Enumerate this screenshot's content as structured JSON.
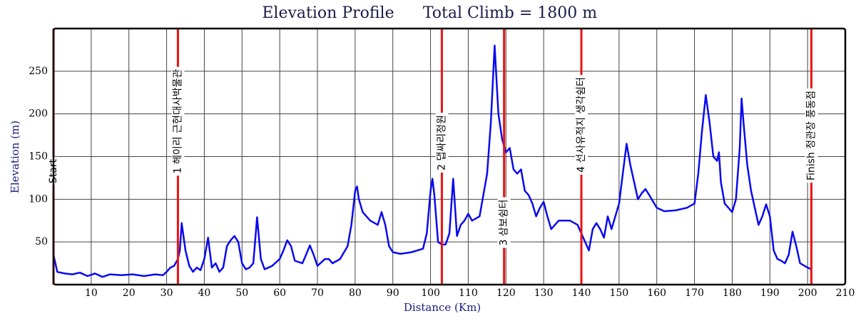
{
  "chart_data": {
    "type": "line",
    "title": "Elevation Profile",
    "total_climb": "Total Climb = 1800 m",
    "x_label": "Distance (Km)",
    "y_label": "Elevation (m)",
    "color": "#0a0aee",
    "grid": true,
    "marker_color": "#ee1111",
    "xlim": [
      0,
      210
    ],
    "xticks": [
      10,
      20,
      30,
      40,
      50,
      60,
      70,
      80,
      90,
      100,
      110,
      120,
      130,
      140,
      150,
      160,
      170,
      180,
      190,
      200,
      210
    ],
    "ylim": [
      0,
      300
    ],
    "yticks": [
      50,
      100,
      150,
      200,
      250
    ],
    "markers": [
      {
        "x": 0,
        "label": "Start"
      },
      {
        "x": 33,
        "label": "1 헤이리 근현대사박물관"
      },
      {
        "x": 103,
        "label": "2 댑싸리정원"
      },
      {
        "x": 119.5,
        "label": "3 삼보쉼터"
      },
      {
        "x": 140,
        "label": "4 선사유적지 생각쉼터"
      },
      {
        "x": 201,
        "label": "Finish 정관장 풍동점"
      }
    ],
    "x": [
      0,
      1,
      3,
      5,
      7,
      9,
      11,
      13,
      15,
      18,
      21,
      24,
      27,
      29,
      30,
      31,
      32,
      33,
      33.5,
      34,
      35,
      36,
      37,
      38,
      39,
      40,
      41,
      42,
      43,
      44,
      45,
      46,
      47,
      48,
      49,
      50,
      51,
      52,
      53,
      54,
      55,
      56,
      58,
      60,
      61,
      62,
      63,
      64,
      66,
      67,
      68,
      69,
      70,
      72,
      73,
      74,
      76,
      78,
      79,
      80,
      80.5,
      81,
      82,
      84,
      86,
      87,
      88,
      89,
      90,
      92,
      95,
      98,
      99,
      100,
      100.5,
      101,
      102,
      103,
      104,
      105,
      106,
      107,
      108,
      109,
      110,
      111,
      113,
      115,
      116,
      117,
      118,
      119,
      120,
      121,
      122,
      123,
      124,
      125,
      126,
      127,
      128,
      129,
      130,
      131,
      132,
      133,
      134,
      137,
      139,
      140,
      141,
      142,
      143,
      144,
      145,
      146,
      147,
      148,
      150,
      151,
      152,
      153,
      154,
      155,
      156,
      157,
      158,
      160,
      162,
      165,
      168,
      170,
      171,
      172,
      173,
      174,
      175,
      176,
      176.5,
      177,
      178,
      180,
      181,
      182,
      182.5,
      183,
      184,
      185,
      186,
      187,
      188,
      189,
      190,
      191,
      192,
      193,
      194,
      195,
      196,
      197,
      198,
      200,
      201
    ],
    "values": [
      35,
      15,
      13,
      12,
      14,
      10,
      13,
      9,
      12,
      11,
      12,
      10,
      12,
      11,
      15,
      20,
      22,
      30,
      40,
      72,
      40,
      22,
      15,
      20,
      17,
      30,
      55,
      20,
      25,
      15,
      20,
      45,
      52,
      57,
      50,
      25,
      18,
      20,
      25,
      79,
      30,
      18,
      22,
      30,
      40,
      52,
      45,
      28,
      25,
      35,
      46,
      35,
      22,
      30,
      30,
      25,
      30,
      45,
      70,
      110,
      115,
      100,
      85,
      75,
      70,
      85,
      70,
      45,
      38,
      36,
      38,
      42,
      60,
      110,
      124,
      105,
      50,
      47,
      47,
      60,
      124,
      57,
      70,
      75,
      83,
      75,
      80,
      130,
      190,
      280,
      200,
      170,
      155,
      160,
      135,
      130,
      135,
      110,
      105,
      95,
      80,
      90,
      97,
      80,
      65,
      70,
      75,
      75,
      70,
      60,
      50,
      40,
      65,
      72,
      65,
      55,
      80,
      65,
      95,
      130,
      165,
      140,
      120,
      100,
      107,
      112,
      105,
      90,
      86,
      87,
      90,
      95,
      130,
      180,
      222,
      190,
      150,
      145,
      155,
      120,
      95,
      85,
      100,
      160,
      218,
      190,
      140,
      110,
      90,
      70,
      80,
      94,
      80,
      40,
      30,
      28,
      25,
      35,
      62,
      45,
      25,
      20,
      18
    ]
  }
}
